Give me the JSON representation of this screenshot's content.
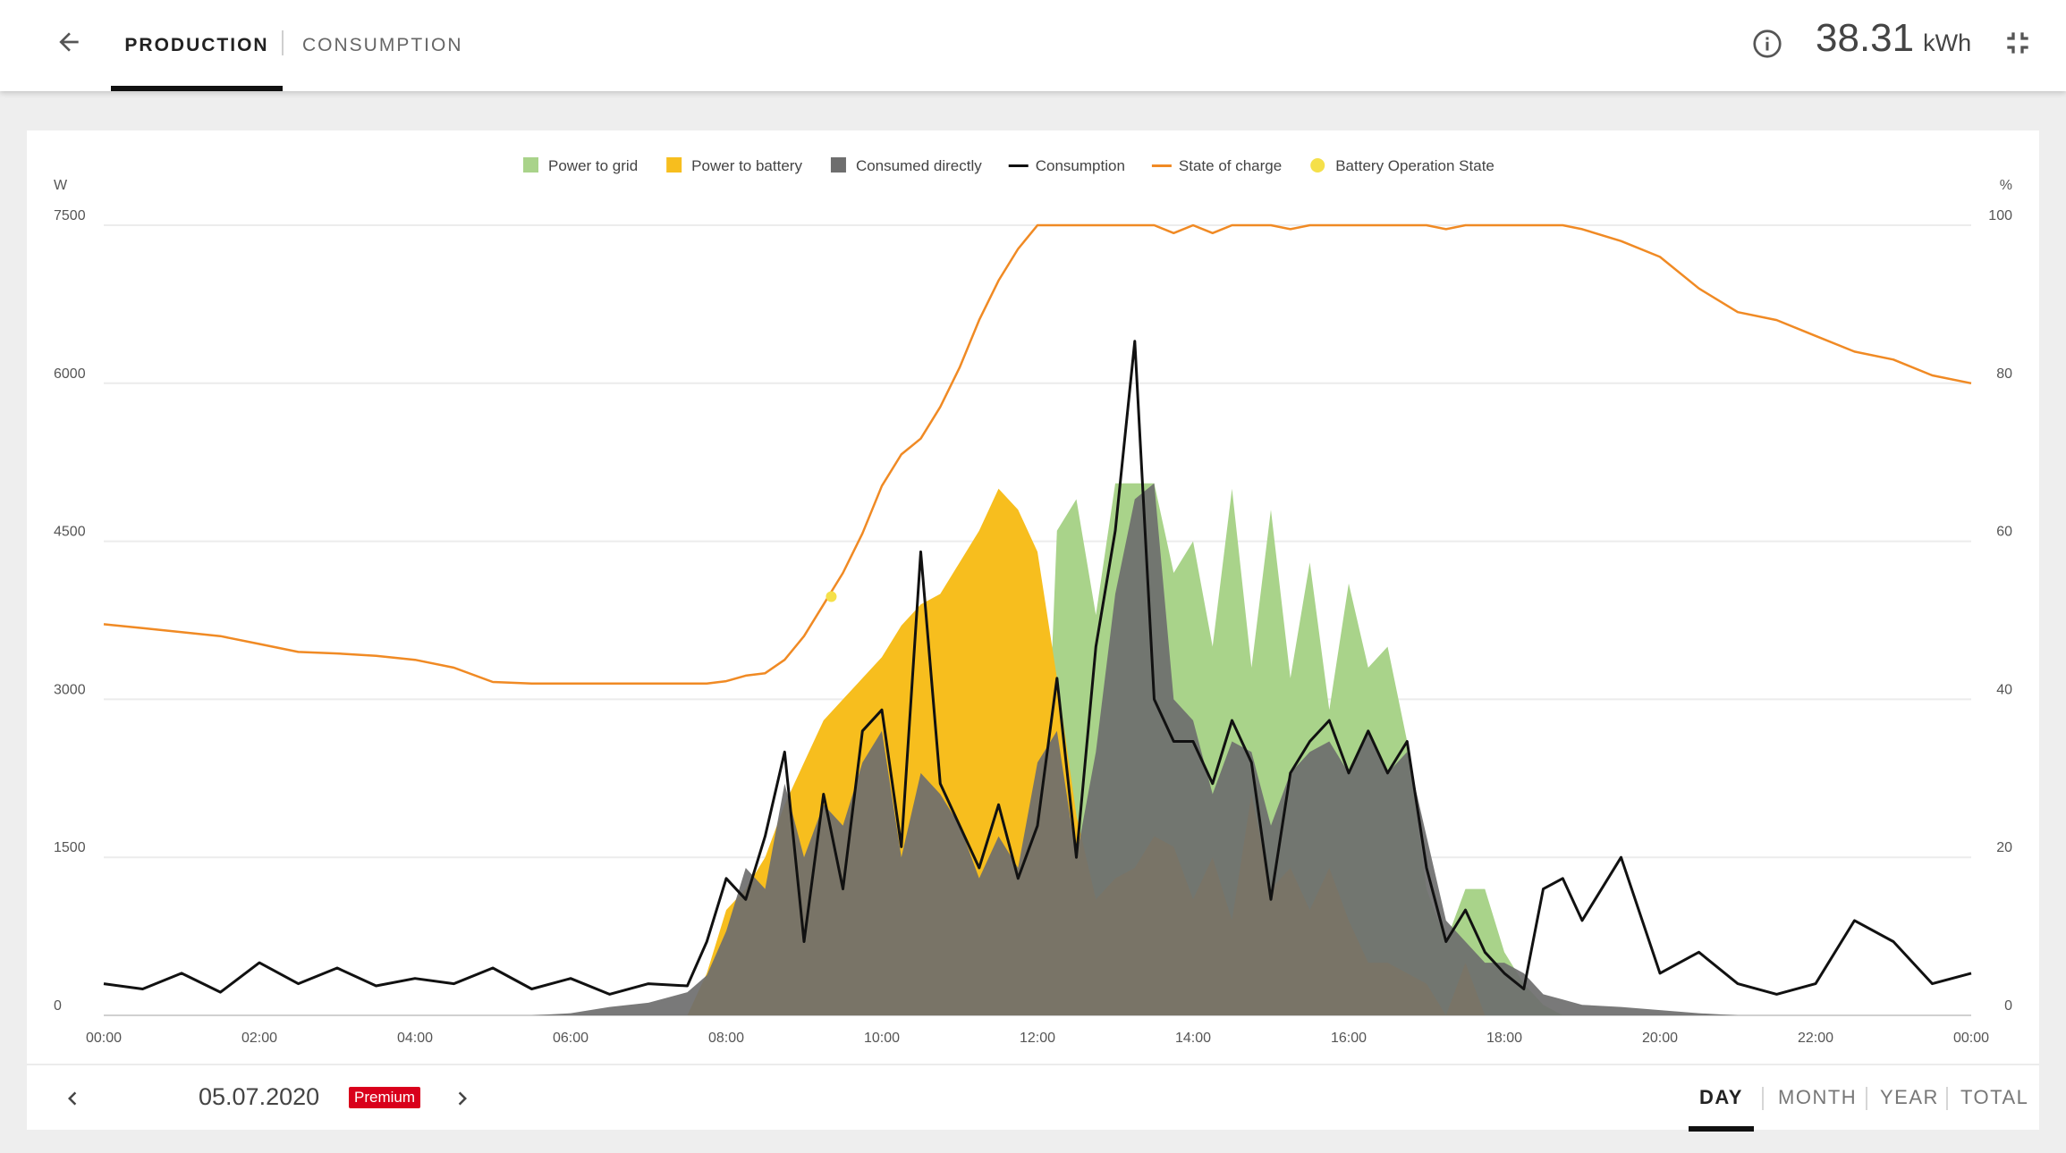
{
  "tabs": {
    "production": "PRODUCTION",
    "consumption": "CONSUMPTION"
  },
  "header": {
    "total_value": "38.31",
    "total_unit": "kWh"
  },
  "footer": {
    "date": "05.07.2020",
    "badge": "Premium",
    "periods": {
      "day": "DAY",
      "month": "MONTH",
      "year": "YEAR",
      "total": "TOTAL"
    }
  },
  "icons": {
    "back": "arrow-left-icon",
    "info": "info-icon",
    "collapse": "collapse-icon",
    "prev": "chevron-left-icon",
    "next": "chevron-right-icon"
  },
  "chart_data": {
    "type": "area",
    "left_unit": "W",
    "right_unit": "%",
    "ylim": [
      0,
      7500
    ],
    "y2lim": [
      0,
      100
    ],
    "yticks": [
      "0",
      "1500",
      "3000",
      "4500",
      "6000",
      "7500"
    ],
    "y2ticks": [
      "0",
      "20",
      "40",
      "60",
      "80",
      "100"
    ],
    "xlim": [
      0,
      24
    ],
    "xticks": [
      "00:00",
      "02:00",
      "04:00",
      "06:00",
      "08:00",
      "10:00",
      "12:00",
      "14:00",
      "16:00",
      "18:00",
      "20:00",
      "22:00",
      "00:00"
    ],
    "grid": true,
    "legend_position": "top-center",
    "legend": [
      {
        "name": "Power to grid",
        "color": "#a9d38a",
        "shape": "square"
      },
      {
        "name": "Power to battery",
        "color": "#f7be1e",
        "shape": "square"
      },
      {
        "name": "Consumed directly",
        "color": "#6e6e6e",
        "shape": "square"
      },
      {
        "name": "Consumption",
        "color": "#111111",
        "shape": "line"
      },
      {
        "name": "State of charge",
        "color": "#f08a24",
        "shape": "line"
      },
      {
        "name": "Battery Operation State",
        "color": "#f5e04a",
        "shape": "circle"
      }
    ],
    "x": [
      0,
      0.5,
      1,
      1.5,
      2,
      2.5,
      3,
      3.5,
      4,
      4.5,
      5,
      5.5,
      6,
      6.5,
      7,
      7.5,
      7.75,
      8,
      8.25,
      8.5,
      8.75,
      9,
      9.25,
      9.5,
      9.75,
      10,
      10.25,
      10.5,
      10.75,
      11,
      11.25,
      11.5,
      11.75,
      12,
      12.25,
      12.5,
      12.75,
      13,
      13.25,
      13.5,
      13.75,
      14,
      14.25,
      14.5,
      14.75,
      15,
      15.25,
      15.5,
      15.75,
      16,
      16.25,
      16.5,
      16.75,
      17,
      17.25,
      17.5,
      17.75,
      18,
      18.25,
      18.5,
      18.75,
      19,
      19.5,
      20,
      20.5,
      21,
      21.5,
      22,
      22.5,
      23,
      23.5,
      24
    ],
    "series": [
      {
        "name": "Power to grid",
        "axis": "left",
        "values": [
          0,
          0,
          0,
          0,
          0,
          0,
          0,
          0,
          0,
          0,
          0,
          0,
          0,
          0,
          0,
          0,
          0,
          0,
          0,
          0,
          0,
          0,
          0,
          0,
          0,
          0,
          0,
          0,
          0,
          0,
          0,
          0,
          0,
          0,
          4600,
          4900,
          3800,
          5050,
          5050,
          5050,
          4200,
          4500,
          3500,
          5000,
          3300,
          4800,
          3200,
          4300,
          2900,
          4100,
          3300,
          3500,
          2600,
          1200,
          700,
          1200,
          1200,
          600,
          300,
          100,
          0,
          0,
          0,
          0,
          0,
          0,
          0,
          0,
          0,
          0,
          0,
          0
        ]
      },
      {
        "name": "Power to battery",
        "axis": "left",
        "values": [
          0,
          0,
          0,
          0,
          0,
          0,
          0,
          0,
          0,
          0,
          0,
          0,
          0,
          0,
          0,
          0,
          400,
          1000,
          1200,
          1500,
          2000,
          2400,
          2800,
          3000,
          3200,
          3400,
          3700,
          3900,
          4000,
          4300,
          4600,
          5000,
          4800,
          4400,
          3200,
          1900,
          1100,
          1300,
          1400,
          1700,
          1600,
          1100,
          1500,
          900,
          2100,
          1200,
          1400,
          1000,
          1400,
          900,
          500,
          500,
          400,
          300,
          0,
          500,
          0,
          0,
          0,
          0,
          0,
          0,
          0,
          0,
          0,
          0,
          0,
          0,
          0,
          0,
          0,
          0
        ]
      },
      {
        "name": "Consumed directly",
        "axis": "left",
        "values": [
          0,
          0,
          0,
          0,
          0,
          0,
          0,
          0,
          0,
          0,
          0,
          0,
          20,
          80,
          120,
          220,
          380,
          800,
          1400,
          1200,
          2200,
          1500,
          2000,
          1800,
          2400,
          2700,
          1500,
          2300,
          2100,
          1800,
          1300,
          1700,
          1400,
          2400,
          2700,
          1500,
          2500,
          4000,
          4900,
          5050,
          3000,
          2800,
          2100,
          2600,
          2500,
          1800,
          2300,
          2500,
          2600,
          2300,
          2700,
          2300,
          2500,
          1700,
          900,
          700,
          500,
          500,
          400,
          200,
          150,
          100,
          80,
          50,
          20,
          0,
          0,
          0,
          0,
          0,
          0,
          0
        ]
      },
      {
        "name": "Consumption",
        "axis": "left",
        "values": [
          300,
          250,
          400,
          220,
          500,
          300,
          450,
          280,
          350,
          300,
          450,
          250,
          350,
          200,
          300,
          280,
          700,
          1300,
          1100,
          1700,
          2500,
          700,
          2100,
          1200,
          2700,
          2900,
          1600,
          4400,
          2200,
          1800,
          1400,
          2000,
          1300,
          1800,
          3200,
          1500,
          3500,
          4600,
          6400,
          3000,
          2600,
          2600,
          2200,
          2800,
          2400,
          1100,
          2300,
          2600,
          2800,
          2300,
          2700,
          2300,
          2600,
          1400,
          700,
          1000,
          600,
          400,
          250,
          1200,
          1300,
          900,
          1500,
          400,
          600,
          300,
          200,
          300,
          900,
          700,
          300,
          400
        ]
      },
      {
        "name": "State of charge",
        "axis": "right",
        "values": [
          49.5,
          49,
          48.5,
          48,
          47,
          46,
          45.8,
          45.5,
          45,
          44,
          42.2,
          42,
          42,
          42,
          42,
          42,
          42,
          42.3,
          43,
          43.3,
          45,
          48,
          52,
          56,
          61,
          67,
          71,
          73,
          77,
          82,
          88,
          93,
          97,
          100,
          100,
          100,
          100,
          100,
          100,
          100,
          99,
          100,
          99,
          100,
          100,
          100,
          99.5,
          100,
          100,
          100,
          100,
          100,
          100,
          100,
          99.5,
          100,
          100,
          100,
          100,
          100,
          100,
          99.5,
          98,
          96,
          92,
          89,
          88,
          86,
          84,
          83,
          81,
          80
        ]
      }
    ],
    "markers": [
      {
        "series": "Battery Operation State",
        "x": 9.35,
        "y2": 53
      }
    ]
  }
}
